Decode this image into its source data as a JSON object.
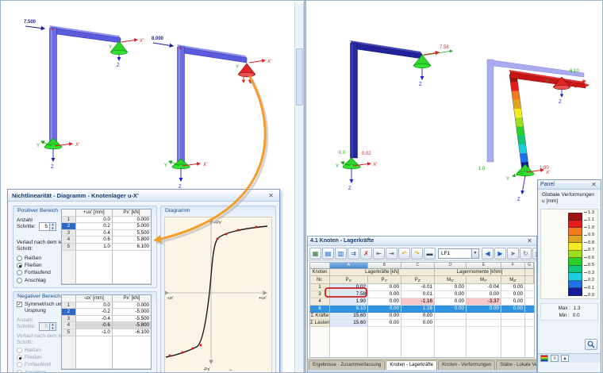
{
  "viewport_left": {
    "frame1_load": "7.500",
    "frame2_load": "8.000",
    "axes": {
      "x": "X'",
      "y": "Y",
      "z": "Z"
    }
  },
  "viewport_right": {
    "frameA": {
      "label_u_bottom": "0.0",
      "label_px_bottom": "0.02",
      "label_px_top": "7.58"
    },
    "frameB": {
      "label_u_bottom": "1.0",
      "label_px_bottom": "1.90",
      "label_px_top": "6.10"
    },
    "axes": {
      "x": "X'",
      "y": "Y",
      "z": "Z"
    }
  },
  "dialog": {
    "title": "Nichtlinearität - Diagramm - Knotenlager u-X'",
    "close": "✕",
    "positive": {
      "title": "Positiver Bereich",
      "anzahl_line1": "Anzahl",
      "anzahl_line2": "Schritte:",
      "steps": "5",
      "col_u": "+ux' [mm]",
      "col_p": "Px' [kN]",
      "rows": [
        [
          "1",
          "0.0",
          "0.000"
        ],
        [
          "2",
          "0.2",
          "5.000"
        ],
        [
          "3",
          "0.4",
          "5.500"
        ],
        [
          "4",
          "0.6",
          "5.800"
        ],
        [
          "5",
          "1.0",
          "6.100"
        ]
      ],
      "verlauf_line1": "Verlauf nach dem letzten",
      "verlauf_line2": "Schritt:",
      "options": [
        "Reißen",
        "Fließen",
        "Fortlaufend",
        "Anschlag"
      ],
      "selected_option": "Fließen"
    },
    "negative": {
      "title": "Negativer Bereich",
      "sym_line1": "Symmetrisch um den",
      "sym_line2": "Ursprung",
      "checkbox_checked": "✓",
      "anzahl_line1": "Anzahl",
      "anzahl_line2": "Schritte:",
      "steps": "5",
      "col_u": "-ux' [mm]",
      "col_p": "Px' [kN]",
      "rows": [
        [
          "1",
          "0.0",
          "0.000"
        ],
        [
          "2",
          "-0.2",
          "-5.000"
        ],
        [
          "3",
          "-0.4",
          "-5.500"
        ],
        [
          "4",
          "-0.6",
          "-5.800"
        ],
        [
          "5",
          "-1.0",
          "-6.100"
        ]
      ],
      "verlauf_line1": "Verlauf nach dem letzten",
      "verlauf_line2": "Schritt:",
      "options": [
        "Reißen",
        "Fließen",
        "Fortlaufend",
        "Anschlag"
      ],
      "selected_option": "Fließen"
    },
    "diagram": {
      "title": "Diagramm",
      "axis_top": "+Px'",
      "axis_bottom": "-Px'",
      "axis_right": "+ux'",
      "axis_left": "-ux'",
      "origin_icon": "↔"
    }
  },
  "chart_data": {
    "type": "line",
    "title": "Diagramm",
    "xlabel": "ux' [mm]",
    "ylabel": "Px' [kN]",
    "x": [
      -1.0,
      -0.6,
      -0.4,
      -0.2,
      0.0,
      0.2,
      0.4,
      0.6,
      1.0
    ],
    "y": [
      -6.1,
      -5.8,
      -5.5,
      -5.0,
      0.0,
      5.0,
      5.5,
      5.8,
      6.1
    ],
    "xlim": [
      -1.3,
      1.3
    ],
    "ylim": [
      -7,
      7
    ],
    "grid": "off",
    "marker_color": "#e01010",
    "line_color": "#1a1a1a"
  },
  "results": {
    "title": "4.1 Knoten - Lagerkräfte",
    "close": "✕",
    "load_case": "LF1",
    "letters": [
      "A",
      "B",
      "C",
      "D",
      "E",
      "F",
      "G"
    ],
    "knoten_label": "Knoten",
    "nr_label": "Nr.",
    "forces_label": "Lagerkräfte [kN]",
    "moments_label": "Lagermomente [kNm]",
    "cols": [
      {
        "m": "P",
        "s": "X'"
      },
      {
        "m": "P",
        "s": "Y'"
      },
      {
        "m": "P",
        "s": "Z'"
      },
      {
        "m": "M",
        "s": "X'"
      },
      {
        "m": "M",
        "s": "Y'"
      },
      {
        "m": "M",
        "s": "Z'"
      }
    ],
    "rows": [
      {
        "nr": "1",
        "px": "0.02",
        "py": "0.00",
        "pz": "-0.01",
        "mx": "0.00",
        "my": "-0.04",
        "mz": "0.00"
      },
      {
        "nr": "3",
        "px": "7.58",
        "py": "0.00",
        "pz": "0.01",
        "mx": "0.00",
        "my": "0.00",
        "mz": "0.00"
      },
      {
        "nr": "4",
        "px": "1.90",
        "py": "0.00",
        "pz": "-1.16",
        "mx": "0.00",
        "my": "-3.37",
        "mz": "0.00"
      },
      {
        "nr": "6",
        "px": "6.10",
        "py": "0.00",
        "pz": "1.16",
        "mx": "0.00",
        "my": "0.00",
        "mz": "0.00"
      },
      {
        "nr": "Σ Kräfte",
        "px": "15.60",
        "py": "0.00",
        "pz": "0.00",
        "mx": "",
        "my": "",
        "mz": ""
      },
      {
        "nr": "Σ Lasten",
        "px": "15.60",
        "py": "0.00",
        "pz": "0.00",
        "mx": "",
        "my": "",
        "mz": ""
      }
    ],
    "selected_row_nr": "6",
    "tabs": [
      "Ergebnisse - Zusammenfassung",
      "Knoten - Lagerkräfte",
      "Knoten - Verformungen",
      "Stäbe - Lokale Verformungen"
    ],
    "active_tab": "Knoten - Lagerkräfte",
    "tab_nav": [
      "|◀",
      "◀",
      "▶",
      "▶|"
    ],
    "toolbar": {
      "left_icons": [
        {
          "name": "table-view-icon",
          "glyph": "▦",
          "color": "#2e7d32"
        },
        {
          "name": "table-settings-icon",
          "glyph": "▤",
          "color": "#1565c0"
        },
        {
          "name": "table-filter-icon",
          "glyph": "▥",
          "color": "#1565c0"
        },
        {
          "name": "table-export-icon",
          "glyph": "⇉",
          "color": "#1565c0"
        },
        {
          "name": "table-delete-icon",
          "glyph": "✗",
          "color": "#c62828"
        },
        {
          "name": "prev-table-icon",
          "glyph": "⇤",
          "color": "#455a64"
        },
        {
          "name": "next-table-icon",
          "glyph": "⇥",
          "color": "#455a64"
        },
        {
          "name": "undo-icon",
          "glyph": "↶",
          "color": "#e6a100"
        },
        {
          "name": "redo-icon",
          "glyph": "↷",
          "color": "#e6a100"
        },
        {
          "name": "view-mode-icon",
          "glyph": "▬",
          "color": "#37474f"
        }
      ],
      "right_icons": [
        {
          "name": "prev-loadcase-icon",
          "glyph": "◀",
          "color": "#1565c0"
        },
        {
          "name": "next-loadcase-icon",
          "glyph": "▶",
          "color": "#1565c0"
        },
        {
          "name": "pointer-icon",
          "glyph": "➤",
          "color": "#607d8b"
        },
        {
          "name": "refresh-icon",
          "glyph": "↻",
          "color": "#607d8b"
        },
        {
          "name": "chart-icon",
          "glyph": "▆",
          "color": "#ef6c00"
        },
        {
          "name": "excel-export-icon",
          "glyph": "▦",
          "color": "#2e7d32"
        }
      ]
    }
  },
  "panel": {
    "title": "Panel",
    "close": "✕",
    "label1": "Globale Verformungen",
    "label2": "u [mm]",
    "scale": {
      "colors": [
        "#9e1414",
        "#e41c1c",
        "#f07c1e",
        "#e2a61e",
        "#f2ec20",
        "#a0dc20",
        "#28d028",
        "#10c87c",
        "#1ecce0",
        "#2070e8",
        "#141c9c"
      ],
      "labels": [
        "1.3",
        "1.1",
        "1.0",
        "0.9",
        "0.8",
        "0.7",
        "0.6",
        "0.5",
        "0.3",
        "0.2",
        "0.1",
        "0.0"
      ]
    },
    "max_label": "Max :",
    "max_value": "1.3",
    "min_label": "Min :",
    "min_value": "0.0",
    "footer_icons": [
      {
        "name": "color-scale-tab-icon",
        "glyph": "",
        "class": "scale"
      },
      {
        "name": "panel-options-tab-icon",
        "glyph": "≡",
        "class": ""
      },
      {
        "name": "display-factors-tab-icon",
        "glyph": "▲",
        "class": ""
      }
    ]
  }
}
